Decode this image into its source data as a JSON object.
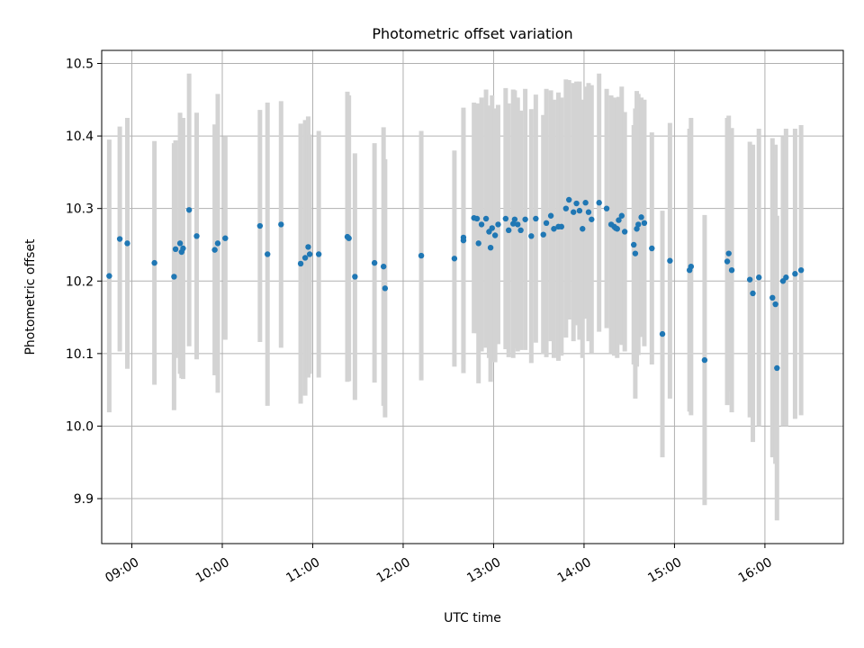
{
  "chart_data": {
    "type": "scatter",
    "title": "Photometric offset variation",
    "xlabel": "UTC time",
    "ylabel": "Photometric offset",
    "grid": true,
    "xlim": [
      "08:40",
      "16:52"
    ],
    "ylim": [
      9.838,
      10.518
    ],
    "x_ticks": [
      "09:00",
      "10:00",
      "11:00",
      "12:00",
      "13:00",
      "14:00",
      "15:00",
      "16:00"
    ],
    "y_ticks": [
      9.9,
      10.0,
      10.1,
      10.2,
      10.3,
      10.4,
      10.5
    ],
    "colors": {
      "point": "#1f77b4",
      "errorbar": "#d3d3d3",
      "grid": "#b0b0b0"
    },
    "series": [
      {
        "x": [
          "08:45",
          "08:52",
          "08:57",
          "09:15",
          "09:28",
          "09:29",
          "09:32",
          "09:33",
          "09:34",
          "09:38",
          "09:43",
          "09:55",
          "09:57",
          "10:02",
          "10:25",
          "10:30",
          "10:39",
          "10:52",
          "10:55",
          "10:57",
          "10:58",
          "11:04",
          "11:23",
          "11:24",
          "11:28",
          "11:41",
          "11:47",
          "11:48",
          "12:12",
          "12:34",
          "12:40",
          "12:40",
          "12:47",
          "12:49",
          "12:50",
          "12:52",
          "12:55",
          "12:57",
          "12:58",
          "12:59",
          "13:01",
          "13:03",
          "13:08",
          "13:10",
          "13:13",
          "13:14",
          "13:16",
          "13:18",
          "13:21",
          "13:25",
          "13:28",
          "13:33",
          "13:35",
          "13:38",
          "13:40",
          "13:43",
          "13:45",
          "13:48",
          "13:50",
          "13:53",
          "13:55",
          "13:57",
          "13:59",
          "14:01",
          "14:03",
          "14:05",
          "14:10",
          "14:15",
          "14:18",
          "14:20",
          "14:21",
          "14:22",
          "14:23",
          "14:25",
          "14:27",
          "14:33",
          "14:34",
          "14:35",
          "14:36",
          "14:38",
          "14:40",
          "14:45",
          "14:52",
          "14:57",
          "15:10",
          "15:11",
          "15:20",
          "15:35",
          "15:36",
          "15:38",
          "15:50",
          "15:52",
          "15:56",
          "16:05",
          "16:07",
          "16:08",
          "16:12",
          "16:14",
          "16:20",
          "16:24"
        ],
        "y": [
          10.207,
          10.258,
          10.252,
          10.225,
          10.206,
          10.244,
          10.252,
          10.24,
          10.245,
          10.298,
          10.262,
          10.243,
          10.252,
          10.259,
          10.276,
          10.237,
          10.278,
          10.224,
          10.232,
          10.247,
          10.237,
          10.237,
          10.261,
          10.259,
          10.206,
          10.225,
          10.22,
          10.19,
          10.235,
          10.231,
          10.26,
          10.256,
          10.287,
          10.286,
          10.252,
          10.278,
          10.286,
          10.268,
          10.246,
          10.273,
          10.263,
          10.278,
          10.286,
          10.27,
          10.279,
          10.285,
          10.278,
          10.27,
          10.285,
          10.262,
          10.286,
          10.264,
          10.28,
          10.29,
          10.272,
          10.275,
          10.275,
          10.3,
          10.312,
          10.295,
          10.307,
          10.297,
          10.272,
          10.308,
          10.295,
          10.285,
          10.308,
          10.3,
          10.278,
          10.275,
          10.273,
          10.272,
          10.284,
          10.29,
          10.268,
          10.25,
          10.238,
          10.272,
          10.278,
          10.288,
          10.28,
          10.245,
          10.127,
          10.228,
          10.215,
          10.22,
          10.091,
          10.227,
          10.238,
          10.215,
          10.202,
          10.183,
          10.205,
          10.177,
          10.168,
          10.08,
          10.2,
          10.205,
          10.21,
          10.215
        ],
        "yerr": [
          0.188,
          0.155,
          0.173,
          0.168,
          0.184,
          0.15,
          0.18,
          0.174,
          0.18,
          0.188,
          0.17,
          0.173,
          0.206,
          0.14,
          0.16,
          0.209,
          0.17,
          0.193,
          0.19,
          0.18,
          0.165,
          0.17,
          0.2,
          0.197,
          0.17,
          0.165,
          0.192,
          0.178,
          0.172,
          0.149,
          0.175,
          0.183,
          0.159,
          0.158,
          0.193,
          0.175,
          0.178,
          0.174,
          0.185,
          0.183,
          0.175,
          0.165,
          0.18,
          0.175,
          0.185,
          0.178,
          0.175,
          0.165,
          0.18,
          0.175,
          0.171,
          0.165,
          0.185,
          0.173,
          0.178,
          0.185,
          0.178,
          0.178,
          0.165,
          0.178,
          0.168,
          0.178,
          0.178,
          0.16,
          0.178,
          0.185,
          0.178,
          0.165,
          0.178,
          0.178,
          0.17,
          0.178,
          0.17,
          0.178,
          0.165,
          0.165,
          0.2,
          0.19,
          0.18,
          0.165,
          0.17,
          0.16,
          0.17,
          0.19,
          0.195,
          0.205,
          0.2,
          0.198,
          0.19,
          0.196,
          0.19,
          0.205,
          0.205,
          0.22,
          0.22,
          0.21,
          0.2,
          0.205,
          0.2,
          0.2
        ]
      }
    ]
  }
}
